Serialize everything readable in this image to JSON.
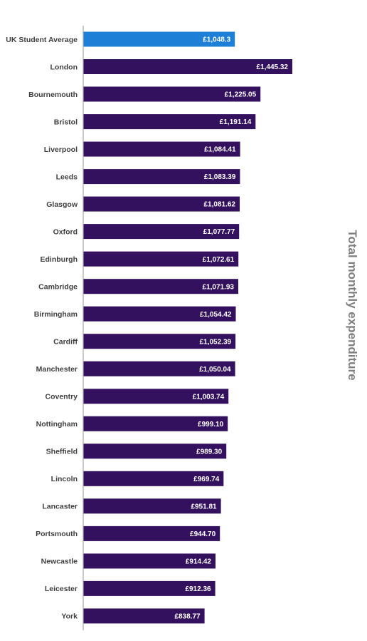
{
  "chart_data": {
    "type": "bar",
    "orientation": "horizontal",
    "categories": [
      "UK Student Average",
      "London",
      "Bournemouth",
      "Bristol",
      "Liverpool",
      "Leeds",
      "Glasgow",
      "Oxford",
      "Edinburgh",
      "Cambridge",
      "Birmingham",
      "Cardiff",
      "Manchester",
      "Coventry",
      "Nottingham",
      "Sheffield",
      "Lincoln",
      "Lancaster",
      "Portsmouth",
      "Newcastle",
      "Leicester",
      "York"
    ],
    "values": [
      1048.3,
      1445.32,
      1225.05,
      1191.14,
      1084.41,
      1083.39,
      1081.62,
      1077.77,
      1072.61,
      1071.93,
      1054.42,
      1052.39,
      1050.04,
      1003.74,
      999.1,
      989.3,
      969.74,
      951.81,
      944.7,
      914.42,
      912.36,
      838.77
    ],
    "value_labels": [
      "£1,048.3",
      "£1,445.32",
      "£1,225.05",
      "£1,191.14",
      "£1,084.41",
      "£1,083.39",
      "£1,081.62",
      "£1,077.77",
      "£1,072.61",
      "£1,071.93",
      "£1,054.42",
      "£1,052.39",
      "£1,050.04",
      "£1,003.74",
      "£999.10",
      "£989.30",
      "£969.74",
      "£951.81",
      "£944.70",
      "£914.42",
      "£912.36",
      "£838.77"
    ],
    "axis_title": "Total monthly expenditure",
    "xlim": [
      0,
      1600
    ],
    "grid": false,
    "colors": {
      "highlight": "#1e7fd6",
      "default": "#34115e",
      "axis": "#a6a6a6"
    },
    "highlight_index": 0
  }
}
